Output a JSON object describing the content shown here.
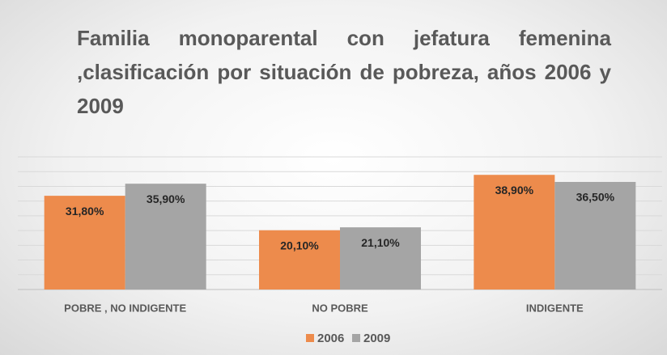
{
  "chart_data": {
    "type": "bar",
    "title": "Familia monoparental con jefatura femenina ,clasificación por situación de pobreza, años 2006 y 2009",
    "categories": [
      "POBRE , NO INDIGENTE",
      "NO POBRE",
      "INDIGENTE"
    ],
    "series": [
      {
        "name": "2006",
        "color": "#ed8b4c",
        "values": [
          31.8,
          20.1,
          38.9
        ],
        "value_labels": [
          "31,80%",
          "20,10%",
          "38,90%"
        ]
      },
      {
        "name": "2009",
        "color": "#a5a5a5",
        "values": [
          35.9,
          21.1,
          36.5
        ],
        "value_labels": [
          "35,90%",
          "21,10%",
          "36,50%"
        ]
      }
    ],
    "ylim": [
      0,
      45
    ],
    "yticks": [
      0,
      5,
      10,
      15,
      20,
      25,
      30,
      35,
      40,
      45
    ],
    "grid": true,
    "legend": "bottom"
  }
}
